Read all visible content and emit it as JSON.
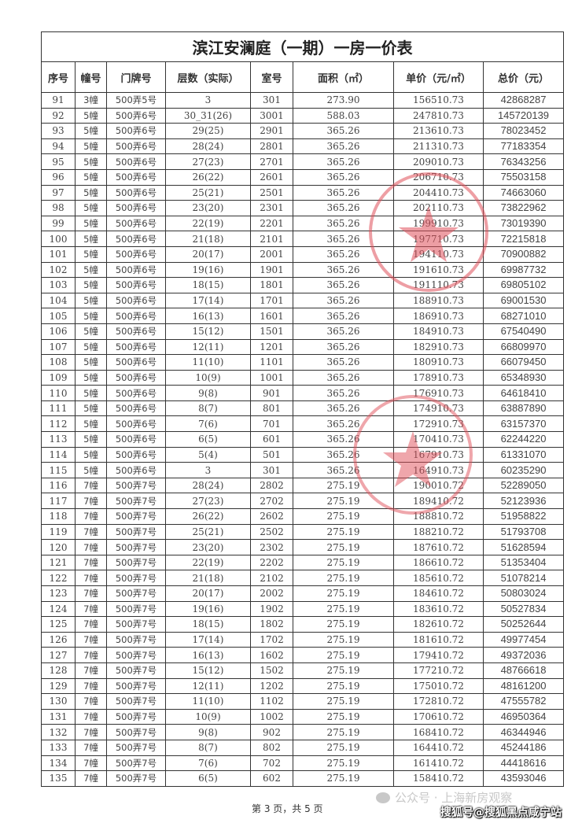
{
  "document": {
    "title": "滨江安澜庭（一期）一房一价表",
    "columns": [
      "序号",
      "幢号",
      "门牌号",
      "层数（实际）",
      "室号",
      "面积（㎡）",
      "单价（元/㎡）",
      "总价（元）"
    ],
    "rows": [
      [
        "91",
        "3幢",
        "500弄5号",
        "3",
        "301",
        "273.90",
        "156510.73",
        "42868287"
      ],
      [
        "92",
        "5幢",
        "500弄6号",
        "30_31(26)",
        "3001",
        "588.03",
        "247810.73",
        "145720139"
      ],
      [
        "93",
        "5幢",
        "500弄6号",
        "29(25)",
        "2901",
        "365.26",
        "213610.73",
        "78023452"
      ],
      [
        "94",
        "5幢",
        "500弄6号",
        "28(24)",
        "2801",
        "365.26",
        "211310.73",
        "77183354"
      ],
      [
        "95",
        "5幢",
        "500弄6号",
        "27(23)",
        "2701",
        "365.26",
        "209010.73",
        "76343256"
      ],
      [
        "96",
        "5幢",
        "500弄6号",
        "26(22)",
        "2601",
        "365.26",
        "206710.73",
        "75503158"
      ],
      [
        "97",
        "5幢",
        "500弄6号",
        "25(21)",
        "2501",
        "365.26",
        "204410.73",
        "74663060"
      ],
      [
        "98",
        "5幢",
        "500弄6号",
        "23(20)",
        "2301",
        "365.26",
        "202110.73",
        "73822962"
      ],
      [
        "99",
        "5幢",
        "500弄6号",
        "22(19)",
        "2201",
        "365.26",
        "199910.73",
        "73019390"
      ],
      [
        "100",
        "5幢",
        "500弄6号",
        "21(18)",
        "2101",
        "365.26",
        "197710.73",
        "72215818"
      ],
      [
        "101",
        "5幢",
        "500弄6号",
        "20(17)",
        "2001",
        "365.26",
        "194110.73",
        "70900882"
      ],
      [
        "102",
        "5幢",
        "500弄6号",
        "19(16)",
        "1901",
        "365.26",
        "191610.73",
        "69987732"
      ],
      [
        "103",
        "5幢",
        "500弄6号",
        "18(15)",
        "1801",
        "365.26",
        "191110.73",
        "69805102"
      ],
      [
        "104",
        "5幢",
        "500弄6号",
        "17(14)",
        "1701",
        "365.26",
        "188910.73",
        "69001530"
      ],
      [
        "105",
        "5幢",
        "500弄6号",
        "16(13)",
        "1601",
        "365.26",
        "186910.73",
        "68271010"
      ],
      [
        "106",
        "5幢",
        "500弄6号",
        "15(12)",
        "1501",
        "365.26",
        "184910.73",
        "67540490"
      ],
      [
        "107",
        "5幢",
        "500弄6号",
        "12(11)",
        "1201",
        "365.26",
        "182910.73",
        "66809970"
      ],
      [
        "108",
        "5幢",
        "500弄6号",
        "11(10)",
        "1101",
        "365.26",
        "180910.73",
        "66079450"
      ],
      [
        "109",
        "5幢",
        "500弄6号",
        "10(9)",
        "1001",
        "365.26",
        "178910.73",
        "65348930"
      ],
      [
        "110",
        "5幢",
        "500弄6号",
        "9(8)",
        "901",
        "365.26",
        "176910.73",
        "64618410"
      ],
      [
        "111",
        "5幢",
        "500弄6号",
        "8(7)",
        "801",
        "365.26",
        "174910.73",
        "63887890"
      ],
      [
        "112",
        "5幢",
        "500弄6号",
        "7(6)",
        "701",
        "365.26",
        "172910.73",
        "63157370"
      ],
      [
        "113",
        "5幢",
        "500弄6号",
        "6(5)",
        "601",
        "365.26",
        "170410.73",
        "62244220"
      ],
      [
        "114",
        "5幢",
        "500弄6号",
        "5(4)",
        "501",
        "365.26",
        "167910.73",
        "61331070"
      ],
      [
        "115",
        "5幢",
        "500弄6号",
        "3",
        "301",
        "365.26",
        "164910.73",
        "60235290"
      ],
      [
        "116",
        "7幢",
        "500弄7号",
        "28(24)",
        "2802",
        "275.19",
        "190010.72",
        "52289050"
      ],
      [
        "117",
        "7幢",
        "500弄7号",
        "27(23)",
        "2702",
        "275.19",
        "189410.72",
        "52123936"
      ],
      [
        "118",
        "7幢",
        "500弄7号",
        "26(22)",
        "2602",
        "275.19",
        "188810.72",
        "51958822"
      ],
      [
        "119",
        "7幢",
        "500弄7号",
        "25(21)",
        "2502",
        "275.19",
        "188210.72",
        "51793708"
      ],
      [
        "120",
        "7幢",
        "500弄7号",
        "23(20)",
        "2302",
        "275.19",
        "187610.72",
        "51628594"
      ],
      [
        "121",
        "7幢",
        "500弄7号",
        "22(19)",
        "2202",
        "275.19",
        "186610.72",
        "51353404"
      ],
      [
        "122",
        "7幢",
        "500弄7号",
        "21(18)",
        "2102",
        "275.19",
        "185610.72",
        "51078214"
      ],
      [
        "123",
        "7幢",
        "500弄7号",
        "20(17)",
        "2002",
        "275.19",
        "184610.72",
        "50803024"
      ],
      [
        "124",
        "7幢",
        "500弄7号",
        "19(16)",
        "1902",
        "275.19",
        "183610.72",
        "50527834"
      ],
      [
        "125",
        "7幢",
        "500弄7号",
        "18(15)",
        "1802",
        "275.19",
        "182610.72",
        "50252644"
      ],
      [
        "126",
        "7幢",
        "500弄7号",
        "17(14)",
        "1702",
        "275.19",
        "181610.72",
        "49977454"
      ],
      [
        "127",
        "7幢",
        "500弄7号",
        "16(13)",
        "1602",
        "275.19",
        "179410.72",
        "49372036"
      ],
      [
        "128",
        "7幢",
        "500弄7号",
        "15(12)",
        "1502",
        "275.19",
        "177210.72",
        "48766618"
      ],
      [
        "129",
        "7幢",
        "500弄7号",
        "12(11)",
        "1202",
        "275.19",
        "175010.72",
        "48161200"
      ],
      [
        "130",
        "7幢",
        "500弄7号",
        "11(10)",
        "1102",
        "275.19",
        "172810.72",
        "47555782"
      ],
      [
        "131",
        "7幢",
        "500弄7号",
        "10(9)",
        "1002",
        "275.19",
        "170610.72",
        "46950364"
      ],
      [
        "132",
        "7幢",
        "500弄7号",
        "9(8)",
        "902",
        "275.19",
        "168410.72",
        "46344946"
      ],
      [
        "133",
        "7幢",
        "500弄7号",
        "8(7)",
        "802",
        "275.19",
        "164410.72",
        "45244186"
      ],
      [
        "134",
        "7幢",
        "500弄7号",
        "7(6)",
        "702",
        "275.19",
        "161410.72",
        "44418616"
      ],
      [
        "135",
        "7幢",
        "500弄7号",
        "6(5)",
        "602",
        "275.19",
        "158410.72",
        "43593046"
      ]
    ],
    "footer": "第 3 页，共 5 页"
  },
  "stamps": {
    "color": "#e0505a",
    "icon": "red-star-seal"
  },
  "watermarks": {
    "wechat": "公众号 · 上海新房观察",
    "sohu": "搜狐号@搜狐黑点咸宁站"
  }
}
